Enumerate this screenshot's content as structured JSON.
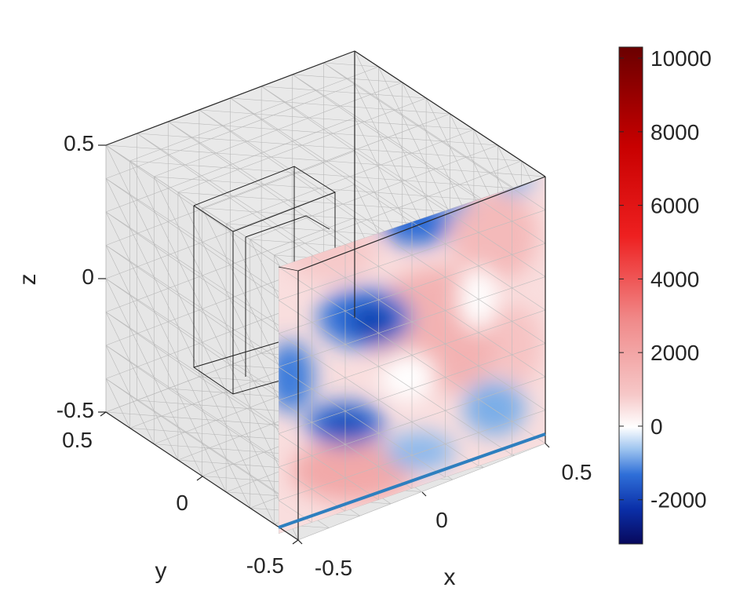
{
  "chart_data": {
    "type": "heatmap",
    "title": "",
    "xlabel": "x",
    "ylabel": "y",
    "zlabel": "z",
    "xlim": [
      -0.5,
      0.5
    ],
    "ylim": [
      -0.5,
      0.5
    ],
    "zlim": [
      -0.5,
      0.5
    ],
    "x_ticks": [
      "-0.5",
      "0",
      "0.5"
    ],
    "y_ticks": [
      "0.5",
      "0",
      "-0.5"
    ],
    "z_ticks": [
      "0.5",
      "0",
      "-0.5"
    ],
    "colorbar": {
      "range": [
        -3200,
        10300
      ],
      "ticks": [
        "10000",
        "8000",
        "6000",
        "4000",
        "2000",
        "0",
        "-2000"
      ],
      "tick_values": [
        10000,
        8000,
        6000,
        4000,
        2000,
        0,
        -2000
      ],
      "colormap": "blue-white-red (diverging)"
    },
    "slice": {
      "plane": "y = -0.5 (front face)",
      "x_range": [
        -0.5,
        0.5
      ],
      "z_range": [
        -0.5,
        0.5
      ],
      "description_points": [
        {
          "x": -0.15,
          "z": -0.1,
          "value": -2500
        },
        {
          "x": -0.25,
          "z": -0.35,
          "value": -2200
        },
        {
          "x": 0.1,
          "z": 0.3,
          "value": -1800
        },
        {
          "x": 0.35,
          "z": -0.3,
          "value": -1200
        },
        {
          "x": -0.45,
          "z": -0.25,
          "value": -1500
        },
        {
          "x": 0.1,
          "z": -0.05,
          "value": 1500
        },
        {
          "x": -0.3,
          "z": -0.5,
          "value": 1800
        },
        {
          "x": 0.3,
          "z": 0.2,
          "value": 1200
        },
        {
          "x": -0.3,
          "z": 0.3,
          "value": 800
        }
      ]
    },
    "highlighted_edge": {
      "color": "#2e7fbf",
      "from": [
        -0.5,
        -0.5,
        -0.5
      ],
      "to": [
        0.5,
        -0.5,
        -0.5
      ]
    },
    "inner_box": {
      "x": [
        -0.45,
        -0.1
      ],
      "y": [
        -0.1,
        0.35
      ],
      "z": [
        -0.4,
        0.25
      ]
    },
    "grid": true
  }
}
